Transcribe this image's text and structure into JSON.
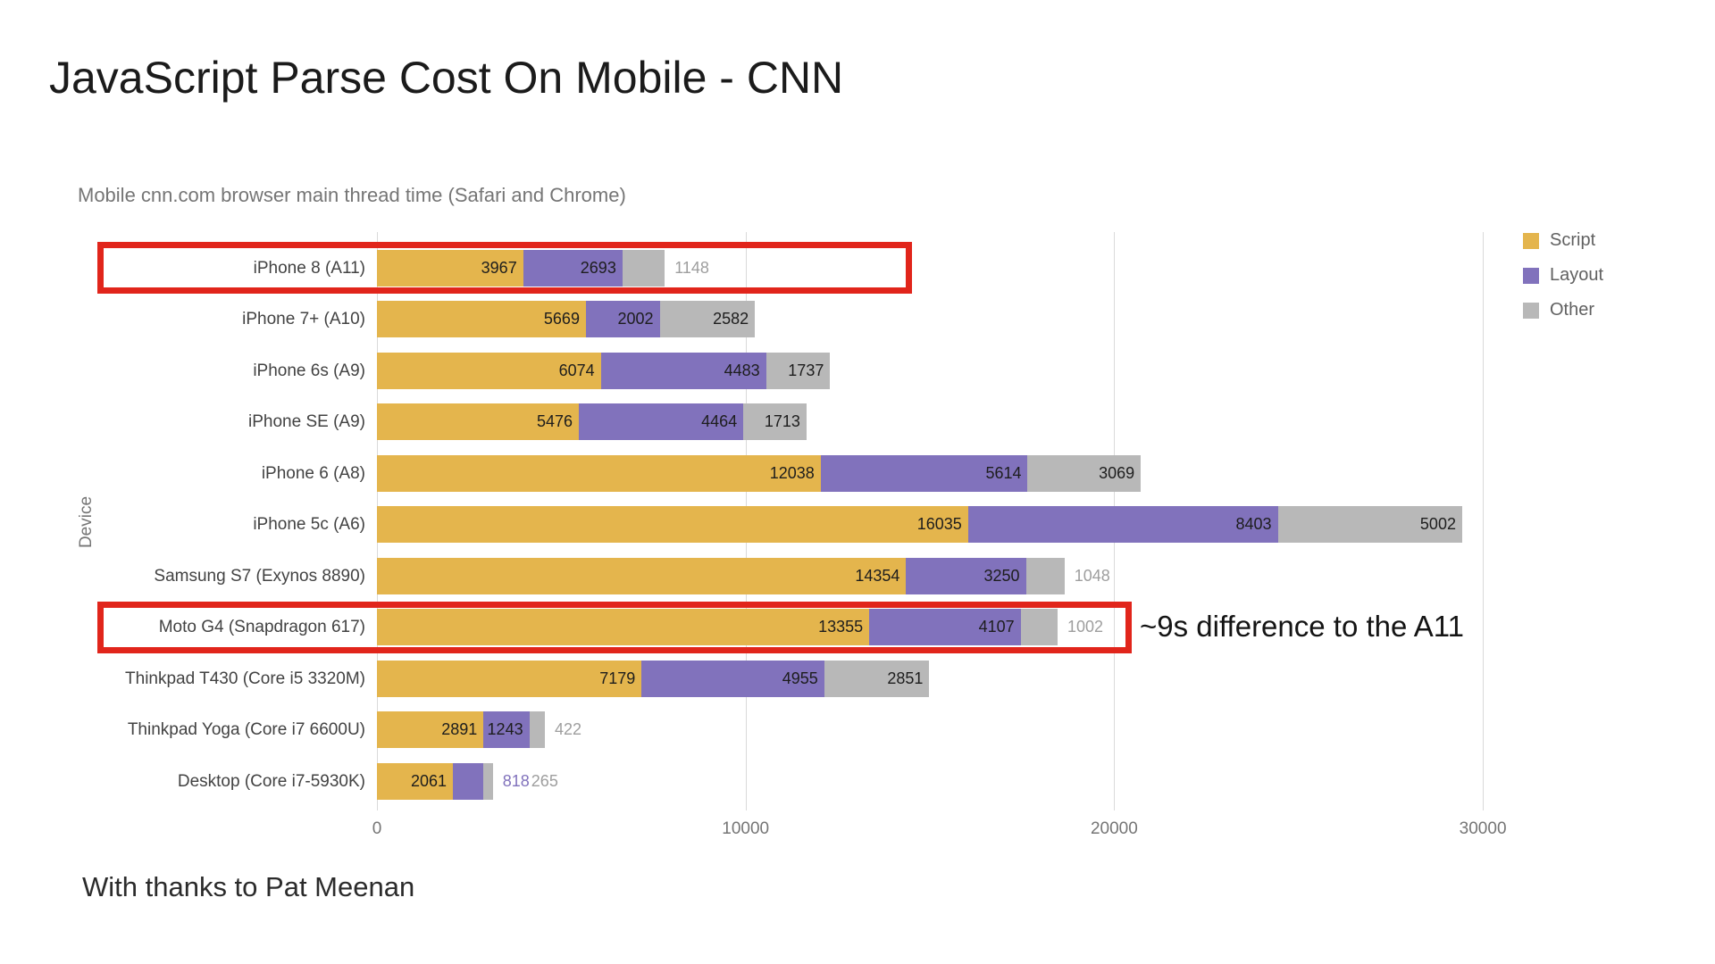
{
  "page": {
    "title": "JavaScript Parse Cost On Mobile - CNN",
    "footer": "With thanks to Pat Meenan"
  },
  "chart_data": {
    "type": "bar",
    "orientation": "horizontal",
    "stacked": true,
    "title": "Mobile cnn.com browser main thread time (Safari and Chrome)",
    "xlabel": "",
    "ylabel": "Device",
    "xlim": [
      0,
      33000
    ],
    "x_ticks": [
      0,
      10000,
      20000,
      30000
    ],
    "grid": true,
    "legend_position": "top-right",
    "categories": [
      "iPhone 8 (A11)",
      "iPhone 7+ (A10)",
      "iPhone 6s (A9)",
      "iPhone SE (A9)",
      "iPhone 6 (A8)",
      "iPhone 5c (A6)",
      "Samsung S7 (Exynos 8890)",
      "Moto G4 (Snapdragon 617)",
      "Thinkpad T430 (Core i5 3320M)",
      "Thinkpad Yoga (Core i7 6600U)",
      "Desktop (Core i7-5930K)"
    ],
    "series": [
      {
        "name": "Script",
        "color": "#e4b54d",
        "values": [
          3967,
          5669,
          6074,
          5476,
          12038,
          16035,
          14354,
          13355,
          7179,
          2891,
          2061
        ],
        "label_outside_indices": [],
        "outside_label_color": "#e4b54d"
      },
      {
        "name": "Layout",
        "color": "#8172bc",
        "values": [
          2693,
          2002,
          4483,
          4464,
          5614,
          8403,
          3250,
          4107,
          4955,
          1243,
          818
        ],
        "label_outside_indices": [
          10
        ],
        "outside_label_color": "#8172bc"
      },
      {
        "name": "Other",
        "color": "#b8b8b8",
        "values": [
          1148,
          2582,
          1737,
          1713,
          3069,
          5002,
          1048,
          1002,
          2851,
          422,
          265
        ],
        "label_outside_indices": [
          0,
          6,
          7,
          9,
          10
        ],
        "outside_label_color": "#9e9e9e"
      }
    ]
  },
  "annotations": {
    "note": "~9s difference to the A11",
    "highlight_color": "#e1251b",
    "highlights": [
      {
        "category": "iPhone 8 (A11)"
      },
      {
        "category": "Moto G4 (Snapdragon 617)"
      }
    ]
  }
}
